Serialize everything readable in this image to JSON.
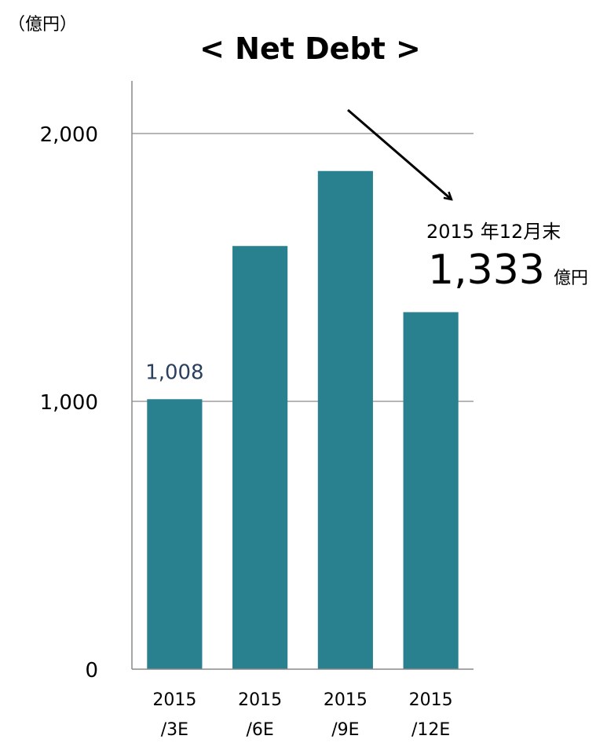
{
  "chart_data": {
    "type": "bar",
    "title": "<  Net Debt  >",
    "unit_label": "（億円）",
    "categories": [
      [
        "2015",
        "/3E"
      ],
      [
        "2015",
        "/6E"
      ],
      [
        "2015",
        "/9E"
      ],
      [
        "2015",
        "/12E"
      ]
    ],
    "values": [
      1008,
      1580,
      1860,
      1333
    ],
    "ylim": [
      0,
      2000
    ],
    "yticks": [
      "0",
      "1,000",
      "2,000"
    ],
    "grid": true,
    "bar_color": "#29808f",
    "data_labels": [
      {
        "index": 0,
        "text": "1,008",
        "color": "#2b3f5e"
      }
    ],
    "callout": {
      "line1": "2015 年12月末",
      "value": "1,333",
      "unit": "億円"
    }
  }
}
